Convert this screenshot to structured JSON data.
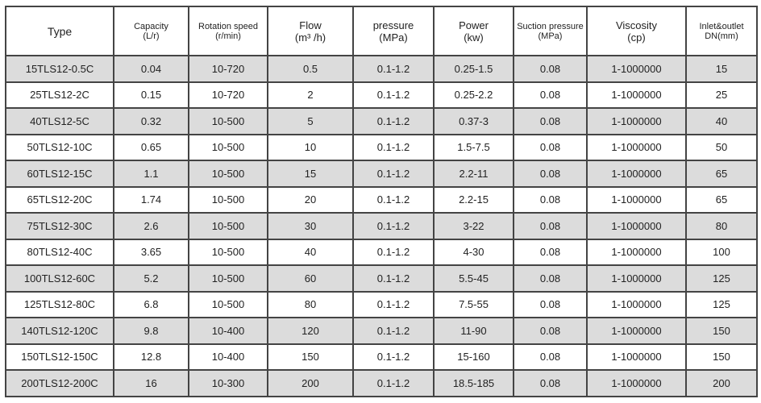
{
  "headers": [
    {
      "label": "Type",
      "unit": ""
    },
    {
      "label": "Capacity",
      "unit": "(L/r)"
    },
    {
      "label": "Rotation speed",
      "unit": "(r/min)"
    },
    {
      "label": "Flow",
      "unit": "(m³ /h)"
    },
    {
      "label": "pressure",
      "unit": "(MPa)"
    },
    {
      "label": "Power",
      "unit": "(kw)"
    },
    {
      "label": "Suction pressure",
      "unit": "(MPa)"
    },
    {
      "label": "Viscosity",
      "unit": "(cp)"
    },
    {
      "label": "Inlet&outlet",
      "unit": "DN(mm)"
    }
  ],
  "rows": [
    [
      "15TLS12-0.5C",
      "0.04",
      "10-720",
      "0.5",
      "0.1-1.2",
      "0.25-1.5",
      "0.08",
      "1-1000000",
      "15"
    ],
    [
      "25TLS12-2C",
      "0.15",
      "10-720",
      "2",
      "0.1-1.2",
      "0.25-2.2",
      "0.08",
      "1-1000000",
      "25"
    ],
    [
      "40TLS12-5C",
      "0.32",
      "10-500",
      "5",
      "0.1-1.2",
      "0.37-3",
      "0.08",
      "1-1000000",
      "40"
    ],
    [
      "50TLS12-10C",
      "0.65",
      "10-500",
      "10",
      "0.1-1.2",
      "1.5-7.5",
      "0.08",
      "1-1000000",
      "50"
    ],
    [
      "60TLS12-15C",
      "1.1",
      "10-500",
      "15",
      "0.1-1.2",
      "2.2-11",
      "0.08",
      "1-1000000",
      "65"
    ],
    [
      "65TLS12-20C",
      "1.74",
      "10-500",
      "20",
      "0.1-1.2",
      "2.2-15",
      "0.08",
      "1-1000000",
      "65"
    ],
    [
      "75TLS12-30C",
      "2.6",
      "10-500",
      "30",
      "0.1-1.2",
      "3-22",
      "0.08",
      "1-1000000",
      "80"
    ],
    [
      "80TLS12-40C",
      "3.65",
      "10-500",
      "40",
      "0.1-1.2",
      "4-30",
      "0.08",
      "1-1000000",
      "100"
    ],
    [
      "100TLS12-60C",
      "5.2",
      "10-500",
      "60",
      "0.1-1.2",
      "5.5-45",
      "0.08",
      "1-1000000",
      "125"
    ],
    [
      "125TLS12-80C",
      "6.8",
      "10-500",
      "80",
      "0.1-1.2",
      "7.5-55",
      "0.08",
      "1-1000000",
      "125"
    ],
    [
      "140TLS12-120C",
      "9.8",
      "10-400",
      "120",
      "0.1-1.2",
      "11-90",
      "0.08",
      "1-1000000",
      "150"
    ],
    [
      "150TLS12-150C",
      "12.8",
      "10-400",
      "150",
      "0.1-1.2",
      "15-160",
      "0.08",
      "1-1000000",
      "150"
    ],
    [
      "200TLS12-200C",
      "16",
      "10-300",
      "200",
      "0.1-1.2",
      "18.5-185",
      "0.08",
      "1-1000000",
      "200"
    ]
  ]
}
